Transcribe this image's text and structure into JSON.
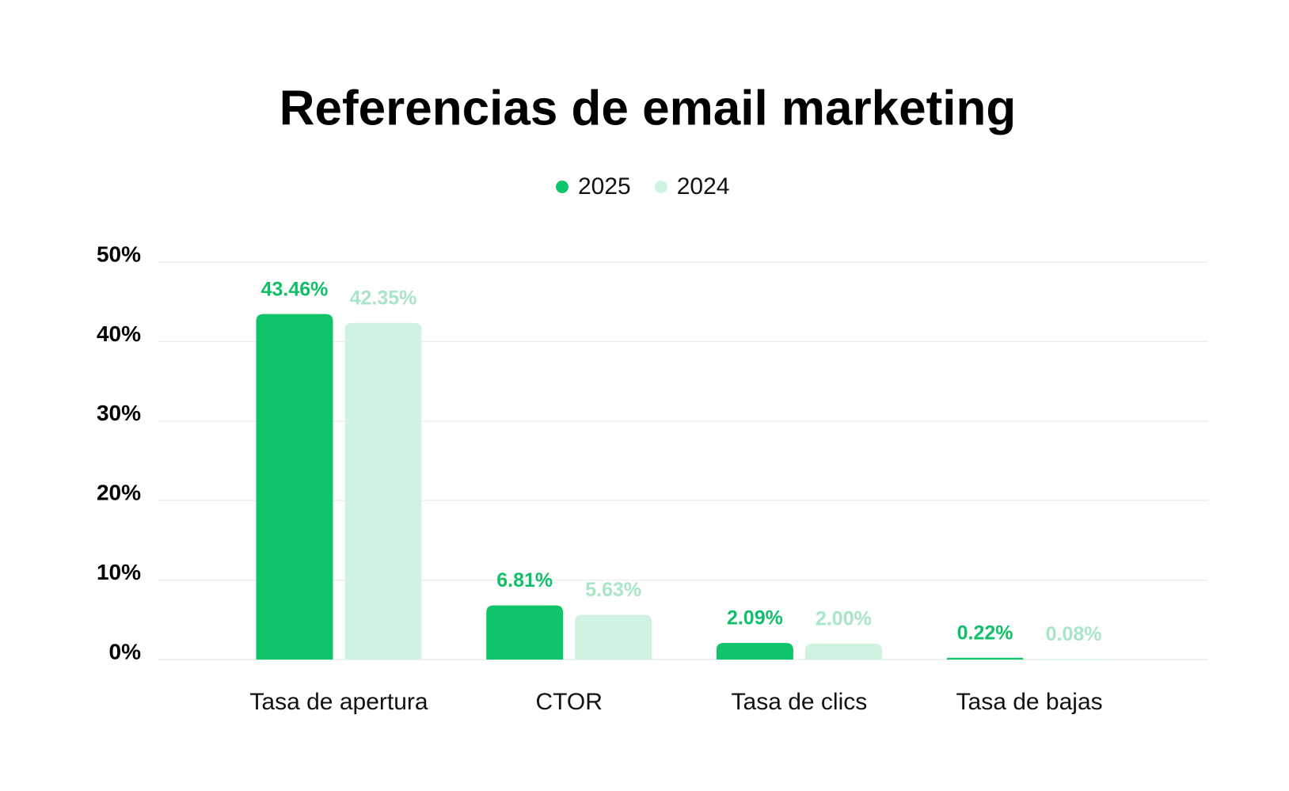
{
  "chart_data": {
    "type": "bar",
    "title": "Referencias de email marketing",
    "categories": [
      "Tasa de apertura",
      "CTOR",
      "Tasa de clics",
      "Tasa de bajas"
    ],
    "series": [
      {
        "name": "2025",
        "color": "#10c46b",
        "label_color": "#12bf69",
        "values": [
          43.46,
          6.81,
          2.09,
          0.22
        ],
        "value_labels": [
          "43.46%",
          "6.81%",
          "2.09%",
          "0.22%"
        ]
      },
      {
        "name": "2024",
        "color": "#d0f3e1",
        "label_color": "#a9e6c7",
        "values": [
          42.35,
          5.63,
          2.0,
          0.08
        ],
        "value_labels": [
          "42.35%",
          "5.63%",
          "2.00%",
          "0.08%"
        ]
      }
    ],
    "ylim": [
      0,
      50
    ],
    "yticks": [
      {
        "value": 0,
        "label": "0%"
      },
      {
        "value": 10,
        "label": "10%"
      },
      {
        "value": 20,
        "label": "20%"
      },
      {
        "value": 30,
        "label": "30%"
      },
      {
        "value": 40,
        "label": "40%"
      },
      {
        "value": 50,
        "label": "50%"
      }
    ],
    "grid": true
  }
}
